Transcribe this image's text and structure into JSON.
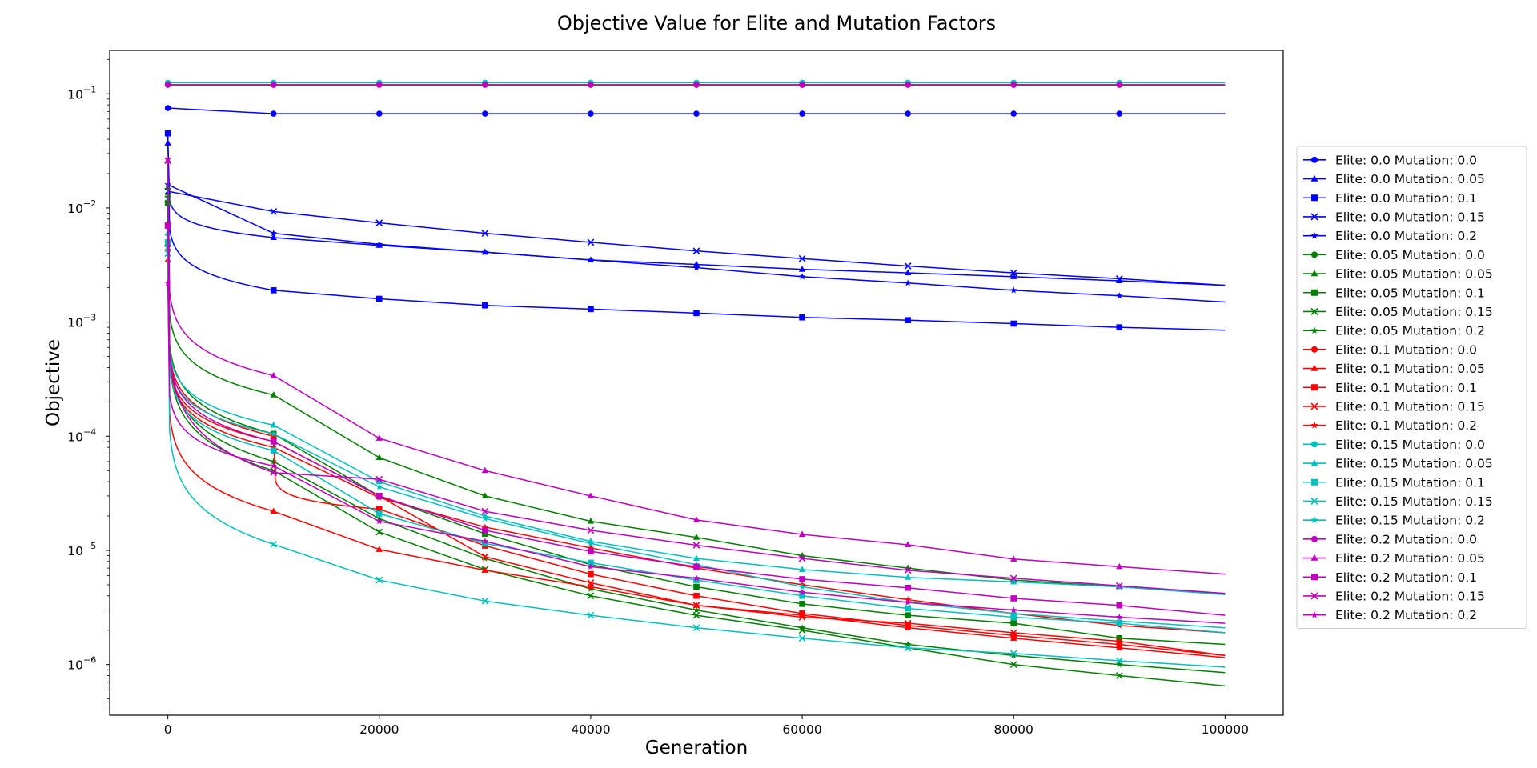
{
  "chart_data": {
    "type": "line",
    "title": "Objective Value for Elite and Mutation Factors",
    "xlabel": "Generation",
    "ylabel": "Objective",
    "xlim": [
      -5500,
      105500
    ],
    "ylim": [
      3.6e-07,
      0.24
    ],
    "yscale": "log",
    "x_ticks": [
      0,
      20000,
      40000,
      60000,
      80000,
      100000
    ],
    "x_tick_labels": [
      "0",
      "20000",
      "40000",
      "60000",
      "80000",
      "100000"
    ],
    "y_ticks": [
      1e-06,
      1e-05,
      0.0001,
      0.001,
      0.01,
      0.1
    ],
    "y_tick_labels": [
      "10",
      "10",
      "10",
      "10",
      "10",
      "10"
    ],
    "y_tick_exponents": [
      "−6",
      "−5",
      "−4",
      "−3",
      "−2",
      "−1"
    ],
    "grid": false,
    "legend_position": "outside-right",
    "x": [
      0,
      10000,
      20000,
      30000,
      40000,
      50000,
      60000,
      70000,
      80000,
      90000,
      100000
    ],
    "series": [
      {
        "name": "Elite: 0.0 Mutation: 0.0",
        "color": "#0000ff",
        "marker": "circle",
        "values": [
          0.075,
          0.067,
          0.067,
          0.067,
          0.067,
          0.067,
          0.067,
          0.067,
          0.067,
          0.067,
          0.067
        ]
      },
      {
        "name": "Elite: 0.0 Mutation: 0.05",
        "color": "#0000ff",
        "marker": "triangle",
        "values": [
          0.037,
          0.0055,
          0.0047,
          0.0041,
          0.0035,
          0.0032,
          0.0029,
          0.0027,
          0.0025,
          0.0023,
          0.0021
        ]
      },
      {
        "name": "Elite: 0.0 Mutation: 0.1",
        "color": "#0000ff",
        "marker": "square",
        "values": [
          0.045,
          0.0019,
          0.0016,
          0.0014,
          0.0013,
          0.0012,
          0.0011,
          0.00104,
          0.00097,
          0.0009,
          0.00085
        ]
      },
      {
        "name": "Elite: 0.0 Mutation: 0.15",
        "color": "#0000ff",
        "marker": "x",
        "values": [
          0.014,
          0.0093,
          0.0074,
          0.006,
          0.005,
          0.0042,
          0.0036,
          0.0031,
          0.0027,
          0.0024,
          0.0021
        ]
      },
      {
        "name": "Elite: 0.0 Mutation: 0.2",
        "color": "#0000ff",
        "marker": "star",
        "values": [
          0.016,
          0.006,
          0.0048,
          0.0041,
          0.0035,
          0.003,
          0.0025,
          0.0022,
          0.0019,
          0.0017,
          0.0015
        ]
      },
      {
        "name": "Elite: 0.05 Mutation: 0.0",
        "color": "#008000",
        "marker": "circle",
        "values": [
          0.12,
          0.12,
          0.12,
          0.12,
          0.12,
          0.12,
          0.12,
          0.12,
          0.12,
          0.12,
          0.12
        ]
      },
      {
        "name": "Elite: 0.05 Mutation: 0.05",
        "color": "#008000",
        "marker": "triangle",
        "values": [
          0.015,
          0.00023,
          6.5e-05,
          3e-05,
          1.8e-05,
          1.3e-05,
          9e-06,
          7e-06,
          5.5e-06,
          4.8e-06,
          4.2e-06
        ]
      },
      {
        "name": "Elite: 0.05 Mutation: 0.1",
        "color": "#008000",
        "marker": "square",
        "values": [
          0.011,
          0.000105,
          3e-05,
          1.4e-05,
          7.5e-06,
          4.8e-06,
          3.4e-06,
          2.7e-06,
          2.3e-06,
          1.7e-06,
          1.5e-06
        ]
      },
      {
        "name": "Elite: 0.05 Mutation: 0.15",
        "color": "#008000",
        "marker": "x",
        "values": [
          0.012,
          5e-05,
          1.45e-05,
          6.8e-06,
          4e-06,
          2.7e-06,
          2e-06,
          1.4e-06,
          1e-06,
          8e-07,
          6.5e-07
        ]
      },
      {
        "name": "Elite: 0.05 Mutation: 0.2",
        "color": "#008000",
        "marker": "star",
        "values": [
          0.013,
          6e-05,
          1.9e-05,
          8.5e-06,
          4.6e-06,
          3e-06,
          2.1e-06,
          1.5e-06,
          1.2e-06,
          1e-06,
          8.5e-07
        ]
      },
      {
        "name": "Elite: 0.1 Mutation: 0.0",
        "color": "#ff0000",
        "marker": "circle",
        "values": [
          0.12,
          0.12,
          0.12,
          0.12,
          0.12,
          0.12,
          0.12,
          0.12,
          0.12,
          0.12,
          0.12
        ]
      },
      {
        "name": "Elite: 0.1 Mutation: 0.05",
        "color": "#ff0000",
        "marker": "triangle",
        "values": [
          0.0035,
          2.2e-05,
          1.02e-05,
          6.7e-06,
          4.8e-06,
          3.3e-06,
          2.7e-06,
          2.1e-06,
          1.7e-06,
          1.4e-06,
          1.15e-06
        ]
      },
      {
        "name": "Elite: 0.1 Mutation: 0.1",
        "color": "#ff0000",
        "marker": "square",
        "values": [
          0.007,
          0.0001,
          2.3e-05,
          1.1e-05,
          6.2e-06,
          4e-06,
          2.8e-06,
          2.2e-06,
          1.8e-06,
          1.5e-06,
          1.2e-06
        ]
      },
      {
        "name": "Elite: 0.1 Mutation: 0.15",
        "color": "#ff0000",
        "marker": "x",
        "values": [
          0.0045,
          9e-05,
          3e-05,
          8.8e-06,
          5.2e-06,
          3.3e-06,
          2.6e-06,
          2.3e-06,
          1.9e-06,
          1.6e-06,
          1.2e-06
        ]
      },
      {
        "name": "Elite: 0.1 Mutation: 0.2",
        "color": "#ff0000",
        "marker": "star",
        "values": [
          0.005,
          8e-05,
          2.9e-05,
          1.6e-05,
          1.05e-05,
          7e-06,
          5e-06,
          3.7e-06,
          2.8e-06,
          2.2e-06,
          1.9e-06
        ]
      },
      {
        "name": "Elite: 0.15 Mutation: 0.0",
        "color": "#00bfbf",
        "marker": "circle",
        "values": [
          0.125,
          0.125,
          0.125,
          0.125,
          0.125,
          0.125,
          0.125,
          0.125,
          0.125,
          0.125,
          0.125
        ]
      },
      {
        "name": "Elite: 0.15 Mutation: 0.05",
        "color": "#00bfbf",
        "marker": "triangle",
        "values": [
          0.006,
          0.000125,
          4e-05,
          2e-05,
          1.2e-05,
          8.5e-06,
          6.8e-06,
          5.8e-06,
          5.3e-06,
          4.8e-06,
          4.1e-06
        ]
      },
      {
        "name": "Elite: 0.15 Mutation: 0.1",
        "color": "#00bfbf",
        "marker": "square",
        "values": [
          0.005,
          7.5e-05,
          2.1e-05,
          1.15e-05,
          7.8e-06,
          5.5e-06,
          4e-06,
          3.1e-06,
          2.6e-06,
          2.3e-06,
          1.9e-06
        ]
      },
      {
        "name": "Elite: 0.15 Mutation: 0.15",
        "color": "#00bfbf",
        "marker": "x",
        "values": [
          0.004,
          1.13e-05,
          5.5e-06,
          3.6e-06,
          2.7e-06,
          2.1e-06,
          1.7e-06,
          1.4e-06,
          1.25e-06,
          1.08e-06,
          9.5e-07
        ]
      },
      {
        "name": "Elite: 0.15 Mutation: 0.2",
        "color": "#00bfbf",
        "marker": "star",
        "values": [
          0.0045,
          0.000105,
          3.6e-05,
          1.9e-05,
          1.15e-05,
          7.5e-06,
          4.8e-06,
          3.5e-06,
          2.8e-06,
          2.4e-06,
          2.1e-06
        ]
      },
      {
        "name": "Elite: 0.2 Mutation: 0.0",
        "color": "#bf00bf",
        "marker": "circle",
        "values": [
          0.12,
          0.12,
          0.12,
          0.12,
          0.12,
          0.12,
          0.12,
          0.12,
          0.12,
          0.12,
          0.12
        ]
      },
      {
        "name": "Elite: 0.2 Mutation: 0.05",
        "color": "#bf00bf",
        "marker": "triangle",
        "values": [
          0.026,
          0.00034,
          9.6e-05,
          5e-05,
          3e-05,
          1.85e-05,
          1.38e-05,
          1.12e-05,
          8.4e-06,
          7.2e-06,
          6.2e-06
        ]
      },
      {
        "name": "Elite: 0.2 Mutation: 0.1",
        "color": "#bf00bf",
        "marker": "square",
        "values": [
          0.007,
          9e-05,
          3e-05,
          1.5e-05,
          9.8e-06,
          7.2e-06,
          5.6e-06,
          4.7e-06,
          3.8e-06,
          3.3e-06,
          2.7e-06
        ]
      },
      {
        "name": "Elite: 0.2 Mutation: 0.15",
        "color": "#bf00bf",
        "marker": "x",
        "values": [
          0.026,
          4.8e-05,
          4.2e-05,
          2.2e-05,
          1.5e-05,
          1.11e-05,
          8.5e-06,
          6.7e-06,
          5.7e-06,
          4.9e-06,
          4.2e-06
        ]
      },
      {
        "name": "Elite: 0.2 Mutation: 0.2",
        "color": "#bf00bf",
        "marker": "star",
        "values": [
          0.0022,
          5.5e-05,
          1.8e-05,
          1.2e-05,
          7.2e-06,
          5.7e-06,
          4.3e-06,
          3.5e-06,
          3e-06,
          2.6e-06,
          2.3e-06
        ]
      }
    ]
  }
}
